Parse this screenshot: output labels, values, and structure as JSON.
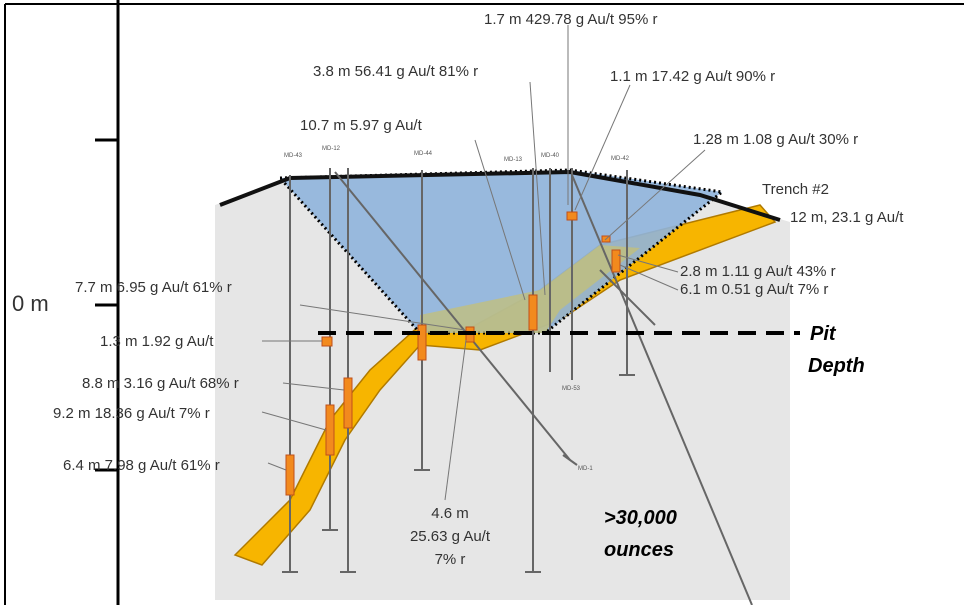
{
  "scale_label": "0 m",
  "annotations": [
    "1.7 m 429.78 g Au/t 95% r",
    "3.8 m 56.41 g Au/t 81% r",
    "1.1 m 17.42 g Au/t 90% r",
    "10.7 m 5.97 g Au/t",
    "1.28 m 1.08 g Au/t 30% r",
    "7.7 m 6.95 g Au/t 61% r",
    "2.8 m 1.11 g Au/t 43% r",
    "6.1 m 0.51 g Au/t 7% r",
    "1.3 m 1.92 g Au/t",
    "8.8 m 3.16 g Au/t 68% r",
    "9.2 m 18.36 g Au/t 7% r",
    "6.4 m 7.98 g Au/t 61% r"
  ],
  "intercept_center": {
    "line1": "4.6 m",
    "line2": "25.63 g Au/t",
    "line3": "7% r"
  },
  "trench": {
    "name": "Trench #2",
    "result": "12 m, 23.1 g Au/t"
  },
  "pit": {
    "line1": "Pit",
    "line2": "Depth"
  },
  "resource": {
    "line1": ">30,000",
    "line2": "ounces"
  },
  "drill_holes": [
    "MD-43",
    "MD-12",
    "MD-44",
    "MD-13",
    "MD-40",
    "MD-42",
    "MD-53",
    "MD-1"
  ]
}
